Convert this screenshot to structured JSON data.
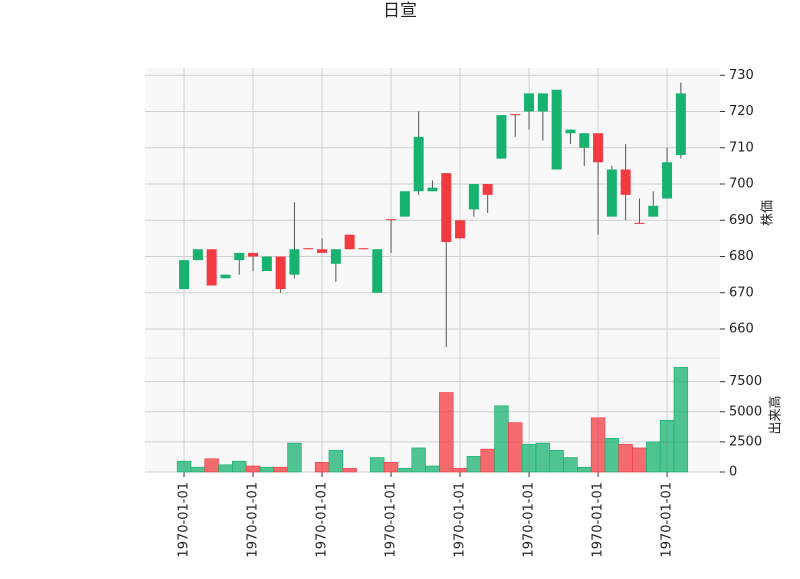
{
  "chart_data": {
    "type": "candlestick",
    "title": "日宣",
    "categories": [
      "1970-01-01",
      null,
      null,
      null,
      null,
      "1970-01-01",
      null,
      null,
      null,
      null,
      "1970-01-01",
      null,
      null,
      null,
      null,
      "1970-01-01",
      null,
      null,
      null,
      null,
      "1970-01-01",
      null,
      null,
      null,
      null,
      "1970-01-01",
      null,
      null,
      null,
      null,
      "1970-01-01",
      null,
      null,
      null,
      null,
      "1970-01-01",
      null
    ],
    "open": [
      671,
      679,
      682,
      674,
      679,
      681,
      676,
      680,
      675,
      682.3,
      682,
      678,
      686,
      682.3,
      670,
      690.3,
      691,
      698,
      698,
      703,
      690,
      693,
      700,
      707,
      719.3,
      720,
      720,
      704,
      714,
      710,
      714,
      691,
      704,
      689.3,
      691,
      696,
      708
    ],
    "close": [
      679,
      682,
      672,
      675,
      681,
      680,
      680,
      671,
      682,
      682,
      681,
      682,
      682,
      682,
      682,
      690,
      698,
      713,
      699,
      684,
      685,
      700,
      697,
      719,
      719,
      725,
      725,
      726,
      715,
      714,
      706,
      704,
      697,
      689,
      694,
      706,
      725
    ],
    "high": [
      679,
      682,
      682,
      675,
      681,
      681,
      680,
      680,
      695,
      682.3,
      685,
      682,
      686,
      682.3,
      682,
      690.3,
      698,
      720,
      701,
      703,
      690,
      700,
      700,
      719,
      719.3,
      725,
      725,
      726,
      715,
      714,
      714,
      705,
      711,
      696,
      698,
      710,
      728
    ],
    "low": [
      671,
      679,
      672,
      674,
      675,
      676,
      676,
      670,
      674,
      682,
      681,
      673,
      682,
      682,
      670,
      681,
      691,
      697,
      698,
      655,
      685,
      691,
      692,
      707,
      713,
      715,
      712,
      704,
      711,
      705,
      686,
      691,
      690,
      689,
      691,
      696,
      707
    ],
    "volume": [
      900,
      400,
      1100,
      600,
      900,
      500,
      400,
      400,
      2400,
      0,
      800,
      1800,
      300,
      0,
      1200,
      800,
      300,
      2000,
      500,
      6600,
      300,
      1300,
      1900,
      5500,
      4100,
      2300,
      2400,
      1800,
      1200,
      400,
      4500,
      2800,
      2300,
      2000,
      2500,
      4300,
      8700
    ],
    "up_color": "#17b26f",
    "down_color": "#f23b41",
    "ylim": [
      652,
      732
    ],
    "yticks": [
      660,
      670,
      680,
      690,
      700,
      710,
      720,
      730
    ],
    "ylabel": "株価",
    "volume_ylim": [
      0,
      9300
    ],
    "volume_yticks": [
      0,
      2500,
      5000,
      7500
    ],
    "volume_label": "出来高",
    "grid": true
  }
}
